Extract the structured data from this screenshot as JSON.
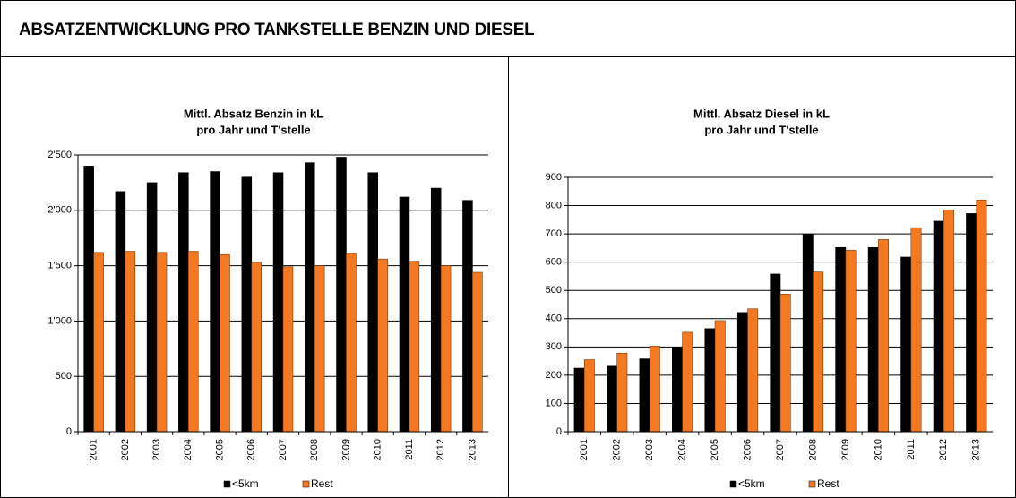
{
  "header": {
    "title": "ABSATZENTWICKLUNG PRO TANKSTELLE BENZIN UND DIESEL"
  },
  "chart_data": [
    {
      "type": "bar",
      "title_lines": [
        "Mittl. Absatz Benzin in kL",
        "pro Jahr und T'stelle"
      ],
      "categories": [
        "2001",
        "2002",
        "2003",
        "2004",
        "2005",
        "2006",
        "2007",
        "2008",
        "2009",
        "2010",
        "2011",
        "2012",
        "2013"
      ],
      "series": [
        {
          "name": "<5km",
          "color": "#000000",
          "values": [
            2400,
            2170,
            2250,
            2340,
            2350,
            2300,
            2340,
            2430,
            2480,
            2340,
            2120,
            2200,
            2090
          ]
        },
        {
          "name": "Rest",
          "color": "#f47920",
          "values": [
            1620,
            1630,
            1620,
            1630,
            1600,
            1530,
            1490,
            1500,
            1610,
            1560,
            1540,
            1500,
            1440
          ]
        }
      ],
      "ylim": [
        0,
        2500
      ],
      "yticks": [
        0,
        500,
        {
          "value": 1000,
          "label": "1'000"
        },
        {
          "value": 1500,
          "label": "1'500"
        },
        {
          "value": 2000,
          "label": "2'000"
        },
        {
          "value": 2500,
          "label": "2'500"
        }
      ],
      "grid": true,
      "legend": "bottom"
    },
    {
      "type": "bar",
      "title_lines": [
        "Mittl. Absatz Diesel in kL",
        "pro Jahr und T'stelle"
      ],
      "categories": [
        "2001",
        "2002",
        "2003",
        "2004",
        "2005",
        "2006",
        "2007",
        "2008",
        "2009",
        "2010",
        "2011",
        "2012",
        "2013"
      ],
      "series": [
        {
          "name": "<5km",
          "color": "#000000",
          "values": [
            225,
            232,
            258,
            300,
            365,
            422,
            558,
            698,
            652,
            652,
            618,
            745,
            772
          ]
        },
        {
          "name": "Rest",
          "color": "#f47920",
          "values": [
            255,
            278,
            303,
            352,
            393,
            435,
            487,
            565,
            642,
            680,
            722,
            785,
            820
          ]
        }
      ],
      "ylim": [
        0,
        900
      ],
      "yticks": [
        0,
        100,
        200,
        300,
        400,
        500,
        600,
        700,
        800,
        900
      ],
      "grid": true,
      "legend": "bottom"
    }
  ]
}
